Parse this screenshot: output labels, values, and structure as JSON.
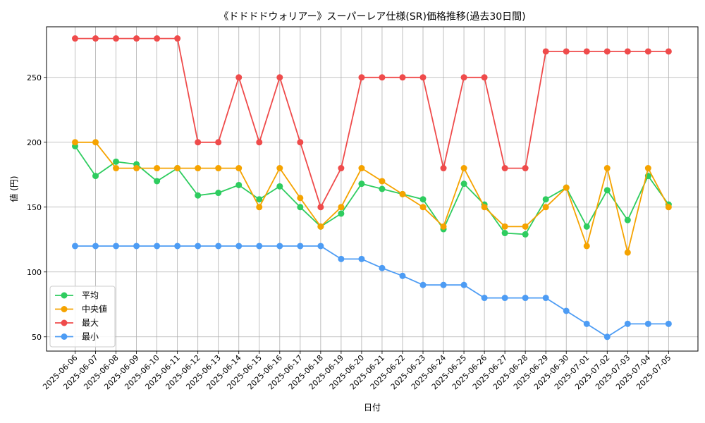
{
  "chart_data": {
    "type": "line",
    "title": "《ドドドドウォリアー》スーパーレア仕様(SR)価格推移(過去30日間)",
    "xlabel": "日付",
    "ylabel": "値 (円)",
    "ylim": [
      39,
      289
    ],
    "yticks": [
      50,
      100,
      150,
      200,
      250
    ],
    "grid": true,
    "legend_position": "lower-left",
    "categories": [
      "2025-06-06",
      "2025-06-07",
      "2025-06-08",
      "2025-06-09",
      "2025-06-10",
      "2025-06-11",
      "2025-06-12",
      "2025-06-13",
      "2025-06-14",
      "2025-06-15",
      "2025-06-16",
      "2025-06-17",
      "2025-06-18",
      "2025-06-19",
      "2025-06-20",
      "2025-06-21",
      "2025-06-22",
      "2025-06-23",
      "2025-06-24",
      "2025-06-25",
      "2025-06-26",
      "2025-06-27",
      "2025-06-28",
      "2025-06-29",
      "2025-06-30",
      "2025-07-01",
      "2025-07-02",
      "2025-07-03",
      "2025-07-04",
      "2025-07-05"
    ],
    "series": [
      {
        "name": "平均",
        "color": "#2ecc5f",
        "values": [
          197,
          174,
          185,
          183,
          170,
          180,
          159,
          161,
          167,
          156,
          166,
          150,
          135,
          145,
          168,
          164,
          160,
          156,
          133,
          168,
          152,
          130,
          129,
          156,
          165,
          135,
          163,
          140,
          174,
          152
        ]
      },
      {
        "name": "中央値",
        "color": "#f5a300",
        "values": [
          200,
          200,
          180,
          180,
          180,
          180,
          180,
          180,
          180,
          150,
          180,
          157,
          135,
          150,
          180,
          170,
          160,
          150,
          135,
          180,
          150,
          135,
          135,
          150,
          165,
          120,
          180,
          115,
          180,
          150
        ]
      },
      {
        "name": "最大",
        "color": "#ef4b4b",
        "values": [
          280,
          280,
          280,
          280,
          280,
          280,
          200,
          200,
          250,
          200,
          250,
          200,
          150,
          180,
          250,
          250,
          250,
          250,
          180,
          250,
          250,
          180,
          180,
          270,
          270,
          270,
          270,
          270,
          270,
          270
        ]
      },
      {
        "name": "最小",
        "color": "#4d9cf4",
        "values": [
          120,
          120,
          120,
          120,
          120,
          120,
          120,
          120,
          120,
          120,
          120,
          120,
          120,
          110,
          110,
          103,
          97,
          90,
          90,
          90,
          80,
          80,
          80,
          80,
          70,
          60,
          50,
          60,
          60,
          60
        ]
      }
    ]
  }
}
